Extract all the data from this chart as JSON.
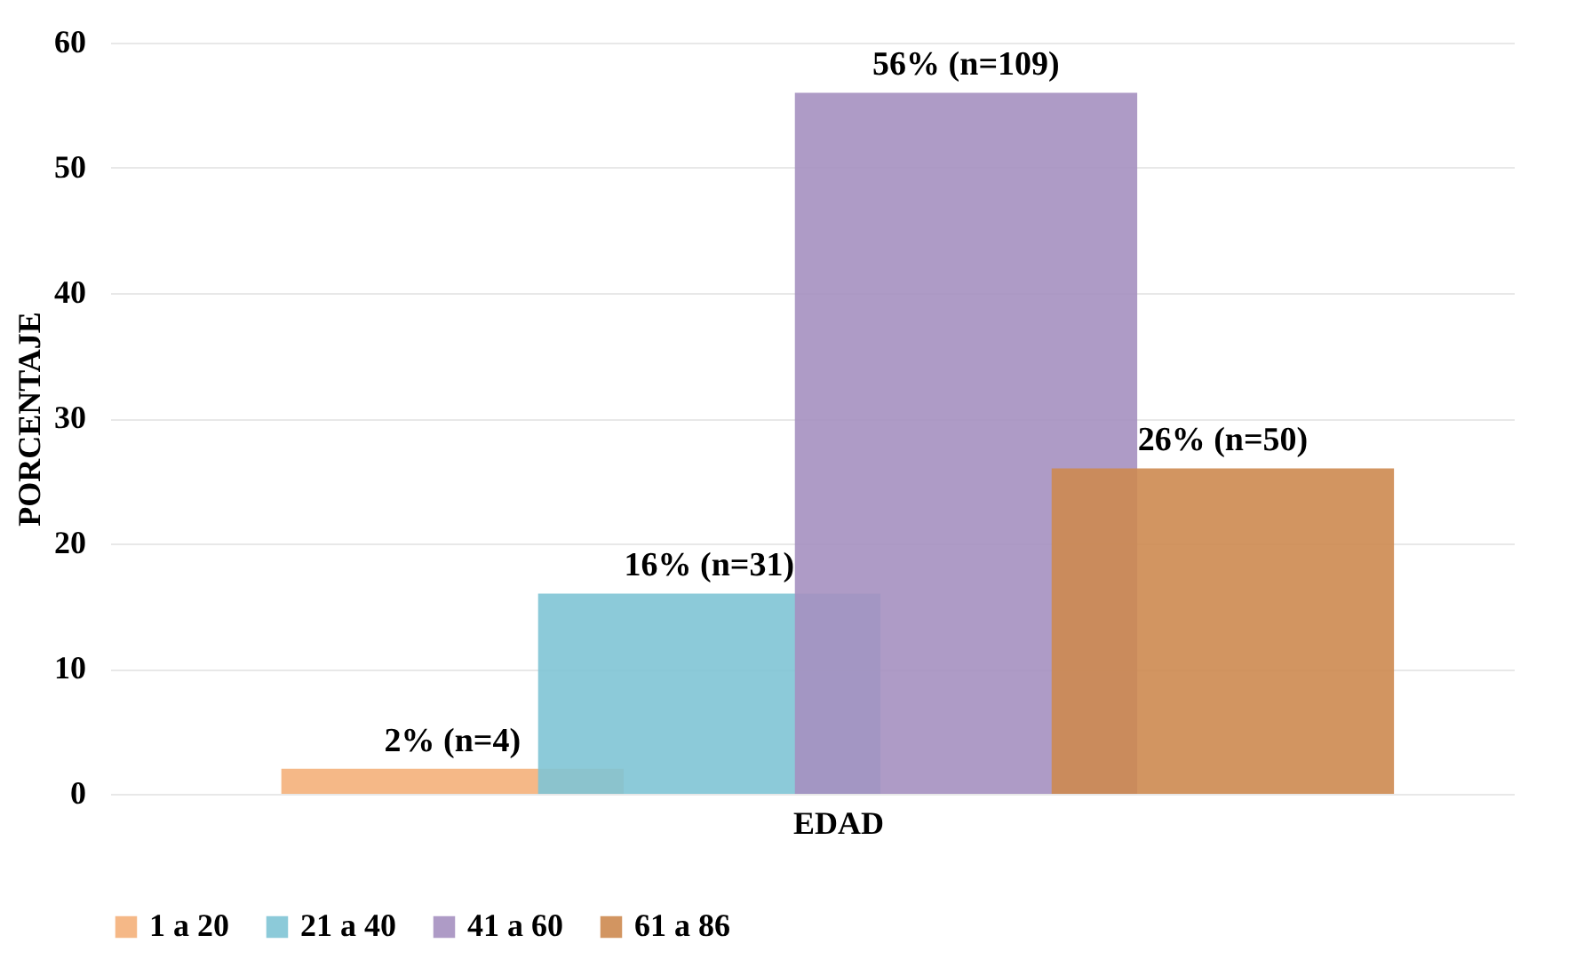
{
  "chart_data": {
    "type": "bar",
    "ylabel": "PORCENTAJE",
    "categories": [
      "EDAD"
    ],
    "series": [
      {
        "name": "1 a 20",
        "color": "#f4b07a",
        "values": [
          2
        ],
        "value_labels": [
          "2% (n=4)"
        ]
      },
      {
        "name": "21 a 40",
        "color": "#7fc4d5",
        "values": [
          16
        ],
        "value_labels": [
          "16% (n=31)"
        ]
      },
      {
        "name": "41 a 60",
        "color": "#a590c0",
        "values": [
          56
        ],
        "value_labels": [
          "56% (n=109)"
        ]
      },
      {
        "name": "61 a 86",
        "color": "#cd8a50",
        "values": [
          26
        ],
        "value_labels": [
          "26% (n=50)"
        ]
      }
    ],
    "ylim": [
      0,
      60
    ],
    "yticks": [
      0,
      10,
      20,
      30,
      40,
      50,
      60
    ],
    "grid": "y",
    "legend": "bottom"
  }
}
